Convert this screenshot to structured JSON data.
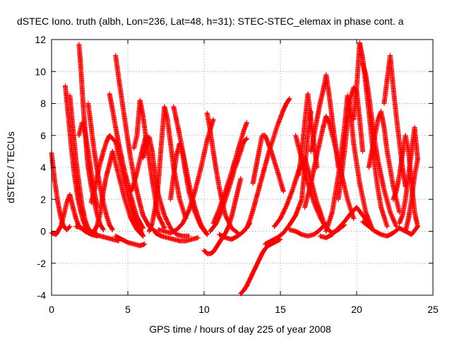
{
  "chart_data": {
    "type": "scatter",
    "title": "dSTEC Iono. truth (albh, Lon=236, Lat=48, h=31): STEC-STEC_elemax in phase cont. a",
    "xlabel": "GPS time / hours of day 225 of year 2008",
    "ylabel": "dSTEC  / TECUs",
    "xlim": [
      0,
      25
    ],
    "ylim": [
      -4,
      12
    ],
    "xticks": [
      0,
      5,
      10,
      15,
      20,
      25
    ],
    "yticks": [
      -4,
      -2,
      0,
      2,
      4,
      6,
      8,
      10,
      12
    ],
    "grid": true,
    "marker": "plus",
    "color": "#ff0000",
    "series": [
      {
        "x": [
          0.0,
          0.2,
          0.4,
          0.6,
          0.8,
          1.0,
          1.2
        ],
        "y": [
          4.9,
          3.2,
          1.9,
          0.9,
          0.3,
          0.1,
          0.3
        ]
      },
      {
        "x": [
          0.0,
          0.3,
          0.6,
          0.8,
          1.0,
          1.2,
          1.4,
          1.6,
          1.8,
          2.2,
          2.6,
          3.0
        ],
        "y": [
          -0.1,
          -0.2,
          0.3,
          1.0,
          1.8,
          2.3,
          1.5,
          0.8,
          0.3,
          0.0,
          -0.2,
          -0.3
        ]
      },
      {
        "x": [
          0.9,
          1.1,
          1.3,
          1.5,
          1.7,
          1.9,
          2.1,
          2.3,
          2.6,
          3.0
        ],
        "y": [
          9.1,
          7.2,
          5.2,
          3.5,
          2.2,
          1.3,
          0.6,
          0.2,
          0.0,
          -0.2
        ]
      },
      {
        "x": [
          1.2,
          1.4,
          1.6,
          1.8,
          2.0,
          2.2,
          2.4
        ],
        "y": [
          8.5,
          6.5,
          4.5,
          3.0,
          1.6,
          0.7,
          0.2
        ]
      },
      {
        "x": [
          1.8,
          1.9,
          2.0,
          2.1,
          2.2,
          2.3,
          2.4,
          2.6,
          2.8,
          3.0,
          3.2,
          3.4
        ],
        "y": [
          11.7,
          10.5,
          9.0,
          7.5,
          6.3,
          5.0,
          4.0,
          2.8,
          1.8,
          1.0,
          0.4,
          0.1
        ]
      },
      {
        "x": [
          1.8,
          2.0,
          2.2,
          2.4,
          2.6,
          2.8,
          3.0
        ],
        "y": [
          6.0,
          6.8,
          6.2,
          5.0,
          3.7,
          2.5,
          1.5
        ]
      },
      {
        "x": [
          2.4,
          2.6,
          2.8,
          3.0,
          3.2,
          3.4,
          3.6,
          3.8,
          4.0
        ],
        "y": [
          8.0,
          6.5,
          5.0,
          3.8,
          2.7,
          1.8,
          1.0,
          0.4,
          0.1
        ]
      },
      {
        "x": [
          2.6,
          2.8,
          3.0,
          3.2,
          3.4,
          3.6,
          3.8,
          4.2,
          4.6,
          5.0,
          5.4,
          5.8,
          6.0
        ],
        "y": [
          1.8,
          2.5,
          3.5,
          4.3,
          5.0,
          5.6,
          6.0,
          5.6,
          4.0,
          2.2,
          0.8,
          0.1,
          -0.3
        ]
      },
      {
        "x": [
          2.8,
          3.0,
          3.2,
          3.4,
          3.6,
          3.8,
          4.0,
          4.4,
          4.8,
          5.2,
          5.6,
          6.0
        ],
        "y": [
          0.0,
          0.4,
          1.2,
          2.5,
          3.5,
          4.2,
          5.0,
          3.5,
          2.0,
          0.8,
          0.1,
          -0.3
        ]
      },
      {
        "x": [
          3.8,
          4.0,
          4.2,
          4.4,
          4.6,
          4.8,
          5.0,
          5.2,
          5.4,
          5.6,
          6.0
        ],
        "y": [
          8.6,
          7.6,
          6.5,
          5.5,
          4.6,
          3.7,
          3.0,
          2.2,
          1.5,
          0.9,
          0.2
        ]
      },
      {
        "x": [
          4.2,
          4.4,
          4.6,
          4.8,
          5.0,
          5.2,
          5.4,
          5.6,
          5.8,
          6.0,
          6.4,
          6.8
        ],
        "y": [
          11.0,
          9.6,
          8.3,
          7.0,
          5.7,
          4.5,
          3.4,
          2.5,
          1.7,
          1.0,
          0.3,
          0.0
        ]
      },
      {
        "x": [
          5.2,
          5.4,
          5.6,
          5.8,
          6.0,
          6.2
        ],
        "y": [
          2.5,
          3.0,
          3.7,
          4.5,
          5.3,
          6.0
        ]
      },
      {
        "x": [
          5.4,
          5.6,
          5.8,
          6.0,
          6.2,
          6.4,
          6.6,
          6.8,
          7.0,
          7.4
        ],
        "y": [
          5.2,
          6.0,
          8.2,
          7.2,
          5.8,
          4.5,
          3.2,
          2.0,
          1.0,
          0.2
        ]
      },
      {
        "x": [
          4.2,
          4.6,
          5.0,
          5.4,
          5.8,
          6.1
        ],
        "y": [
          -0.3,
          -0.5,
          -0.7,
          -0.8,
          -0.9,
          -0.8
        ]
      },
      {
        "x": [
          6.0,
          6.2,
          6.4,
          6.6,
          6.8,
          7.0,
          7.4,
          7.8,
          8.2,
          8.6,
          9.0
        ],
        "y": [
          4.6,
          5.3,
          5.9,
          5.0,
          3.5,
          2.3,
          1.0,
          0.2,
          -0.2,
          -0.3,
          -0.3
        ]
      },
      {
        "x": [
          6.4,
          6.6,
          6.8,
          7.0,
          7.2,
          7.4,
          7.6,
          7.8,
          8.0,
          8.4,
          8.8
        ],
        "y": [
          0.0,
          0.5,
          1.5,
          3.0,
          5.5,
          7.8,
          7.0,
          5.5,
          4.0,
          2.0,
          0.8
        ]
      },
      {
        "x": [
          7.0,
          7.4,
          7.8,
          8.2,
          8.6,
          9.0,
          9.4,
          9.8,
          10.2,
          10.6
        ],
        "y": [
          0.1,
          0.0,
          -0.1,
          0.1,
          0.5,
          1.3,
          2.5,
          4.0,
          5.7,
          7.0
        ]
      },
      {
        "x": [
          8.0,
          8.2,
          8.4,
          8.6,
          8.8,
          9.0,
          9.2,
          9.4,
          9.6,
          9.8,
          10.2
        ],
        "y": [
          7.8,
          6.9,
          6.0,
          5.0,
          4.0,
          3.0,
          2.2,
          1.5,
          0.9,
          0.4,
          -0.2
        ]
      },
      {
        "x": [
          7.8,
          8.0,
          8.2,
          8.4,
          8.6,
          8.8,
          9.0,
          9.4,
          9.8,
          10.2
        ],
        "y": [
          2.0,
          3.5,
          4.8,
          5.5,
          4.8,
          3.6,
          2.5,
          1.2,
          0.3,
          -0.2
        ]
      },
      {
        "x": [
          6.8,
          7.2,
          7.6,
          8.0,
          8.4,
          8.8,
          9.2,
          9.6
        ],
        "y": [
          -0.1,
          -0.3,
          -0.4,
          -0.5,
          -0.6,
          -0.6,
          -0.5,
          -0.4
        ]
      },
      {
        "x": [
          10.0,
          10.2,
          10.4,
          10.6,
          10.8,
          11.0,
          11.2,
          11.4,
          11.6,
          11.8,
          12.0,
          12.4
        ],
        "y": [
          -1.2,
          -1.4,
          -1.4,
          -1.3,
          -1.0,
          -0.7,
          -0.4,
          -0.1,
          0.3,
          0.9,
          1.7,
          3.3
        ]
      },
      {
        "x": [
          10.2,
          10.4,
          10.6,
          10.8,
          11.0,
          11.2,
          11.4,
          11.8,
          12.2
        ],
        "y": [
          7.4,
          6.3,
          5.0,
          3.8,
          2.7,
          1.8,
          1.0,
          0.2,
          -0.1
        ]
      },
      {
        "x": [
          10.4,
          10.8,
          11.2,
          11.6,
          12.0,
          12.4,
          12.6,
          12.8
        ],
        "y": [
          0.0,
          0.5,
          1.4,
          2.6,
          3.9,
          5.0,
          5.6,
          5.8
        ]
      },
      {
        "x": [
          10.6,
          11.0,
          11.4,
          11.8,
          12.2,
          12.6,
          12.8
        ],
        "y": [
          0.5,
          1.4,
          2.5,
          3.7,
          5.0,
          6.3,
          6.8
        ]
      },
      {
        "x": [
          11.0,
          11.4,
          11.8,
          12.2,
          12.6,
          13.0
        ],
        "y": [
          -0.2,
          -0.4,
          -0.5,
          -0.3,
          0.0,
          0.5
        ]
      },
      {
        "x": [
          12.4,
          12.6,
          12.8,
          13.0,
          13.2,
          13.4,
          13.6,
          13.8,
          14.0,
          14.2,
          14.4,
          14.6,
          14.8,
          15.0
        ],
        "y": [
          -3.9,
          -3.7,
          -3.4,
          -3.0,
          -2.6,
          -2.2,
          -1.8,
          -1.4,
          -1.1,
          -0.9,
          -0.8,
          -0.7,
          -0.6,
          -0.5
        ]
      },
      {
        "x": [
          12.8,
          13.0,
          13.2,
          13.4,
          13.6,
          13.8,
          14.0,
          14.2,
          14.4,
          14.6,
          14.8,
          15.0,
          15.2,
          15.4,
          15.6
        ],
        "y": [
          0.2,
          0.7,
          1.3,
          2.0,
          2.7,
          3.4,
          4.1,
          4.8,
          5.4,
          6.0,
          6.6,
          7.1,
          7.6,
          8.0,
          8.3
        ]
      },
      {
        "x": [
          13.2,
          13.4,
          13.6,
          13.8,
          14.0,
          14.4,
          14.8,
          15.2
        ],
        "y": [
          3.0,
          4.0,
          5.0,
          6.0,
          6.0,
          5.0,
          3.8,
          2.5
        ]
      },
      {
        "x": [
          14.0,
          14.4,
          14.8,
          15.2,
          15.6,
          16.0,
          16.4,
          16.6,
          16.8,
          17.0
        ],
        "y": [
          -0.8,
          -0.6,
          -0.4,
          -0.1,
          0.4,
          1.0,
          2.0,
          4.0,
          6.0,
          7.5
        ]
      },
      {
        "x": [
          14.6,
          15.0,
          15.4,
          15.8,
          16.2,
          16.6,
          17.0,
          17.4,
          17.8
        ],
        "y": [
          0.3,
          0.8,
          1.6,
          2.6,
          3.8,
          4.6,
          3.2,
          1.8,
          0.7
        ]
      },
      {
        "x": [
          16.0,
          16.4,
          16.8,
          17.2,
          17.6,
          18.0,
          18.4,
          18.8,
          19.2
        ],
        "y": [
          6.0,
          4.5,
          3.0,
          1.8,
          0.9,
          0.2,
          -0.1,
          0.1,
          0.4
        ]
      },
      {
        "x": [
          16.6,
          17.0,
          17.4,
          17.8,
          18.0,
          18.2,
          18.6,
          19.0,
          19.4,
          19.8
        ],
        "y": [
          1.5,
          3.0,
          4.8,
          6.5,
          7.2,
          6.8,
          5.3,
          3.6,
          2.0,
          0.8
        ]
      },
      {
        "x": [
          17.0,
          17.2,
          17.4,
          17.6,
          17.8,
          18.0,
          18.2,
          18.4,
          18.6,
          18.8
        ],
        "y": [
          5.0,
          6.0,
          7.0,
          8.0,
          8.8,
          9.8,
          8.5,
          7.0,
          5.5,
          4.0
        ]
      },
      {
        "x": [
          16.2,
          16.4,
          16.6,
          16.8,
          17.0,
          17.2,
          17.4
        ],
        "y": [
          3.5,
          5.0,
          6.8,
          8.6,
          7.0,
          5.5,
          4.0
        ]
      },
      {
        "x": [
          18.0,
          18.4,
          18.8,
          19.2,
          19.4,
          19.6,
          19.8,
          20.2,
          20.6,
          21.0
        ],
        "y": [
          0.0,
          1.2,
          3.5,
          6.5,
          8.5,
          7.5,
          5.5,
          3.0,
          1.2,
          0.2
        ]
      },
      {
        "x": [
          18.8,
          19.0,
          19.2,
          19.4,
          19.6,
          19.8,
          20.0,
          20.2,
          20.4
        ],
        "y": [
          2.0,
          3.5,
          5.0,
          6.8,
          8.3,
          9.0,
          8.8,
          7.0,
          5.0
        ]
      },
      {
        "x": [
          19.8,
          20.0,
          20.2,
          20.4,
          20.6,
          20.8,
          21.0,
          21.2,
          21.4,
          21.6,
          22.0
        ],
        "y": [
          7.0,
          9.0,
          11.8,
          10.8,
          9.2,
          7.5,
          5.7,
          4.0,
          2.6,
          1.5,
          0.3
        ]
      },
      {
        "x": [
          20.4,
          20.6,
          20.8,
          21.0,
          21.2,
          21.4,
          21.8,
          22.2,
          22.6
        ],
        "y": [
          10.5,
          9.8,
          8.5,
          7.0,
          5.6,
          4.4,
          2.6,
          1.2,
          0.3
        ]
      },
      {
        "x": [
          20.8,
          21.0,
          21.2,
          21.4,
          21.6,
          21.8,
          22.0,
          22.4,
          22.8
        ],
        "y": [
          4.0,
          5.0,
          6.0,
          7.0,
          7.5,
          6.5,
          5.0,
          2.8,
          1.2
        ]
      },
      {
        "x": [
          21.8,
          22.0,
          22.2,
          22.4,
          22.6,
          22.8,
          23.0,
          23.2
        ],
        "y": [
          8.0,
          9.5,
          11.0,
          9.0,
          7.2,
          5.6,
          4.0,
          2.8
        ]
      },
      {
        "x": [
          22.4,
          22.6,
          22.8,
          23.0,
          23.2,
          23.4,
          23.6,
          23.8,
          24.0
        ],
        "y": [
          2.0,
          2.5,
          3.5,
          4.8,
          6.0,
          5.0,
          3.0,
          1.2,
          0.3
        ]
      },
      {
        "x": [
          22.8,
          23.0,
          23.2,
          23.4,
          23.6,
          23.8,
          24.0
        ],
        "y": [
          0.5,
          1.0,
          2.0,
          3.5,
          5.0,
          6.5,
          4.5
        ]
      },
      {
        "x": [
          23.2,
          23.4,
          23.6,
          23.8,
          24.0
        ],
        "y": [
          0.0,
          0.8,
          2.0,
          3.5,
          4.5
        ]
      },
      {
        "x": [
          20.4,
          20.8,
          21.2,
          21.6,
          22.0,
          22.4,
          22.8,
          23.2,
          23.6,
          24.0
        ],
        "y": [
          0.6,
          0.3,
          0.0,
          -0.2,
          -0.3,
          -0.1,
          0.2,
          0.0,
          -0.2,
          0.3
        ]
      },
      {
        "x": [
          17.6,
          18.0,
          18.4,
          18.8,
          19.2,
          19.6,
          20.0,
          20.4,
          20.8
        ],
        "y": [
          -0.3,
          -0.4,
          -0.2,
          0.2,
          0.6,
          1.1,
          1.5,
          1.0,
          0.5
        ]
      },
      {
        "x": [
          15.6,
          16.0,
          16.4,
          16.8,
          17.2,
          17.6,
          18.0
        ],
        "y": [
          0.1,
          0.0,
          -0.2,
          -0.3,
          -0.2,
          0.1,
          0.5
        ]
      },
      {
        "x": [
          1.6,
          2.0,
          2.4,
          2.8,
          3.2,
          3.6,
          4.0,
          4.4
        ],
        "y": [
          0.3,
          0.2,
          0.0,
          -0.2,
          -0.3,
          -0.4,
          -0.5,
          -0.6
        ]
      }
    ]
  }
}
